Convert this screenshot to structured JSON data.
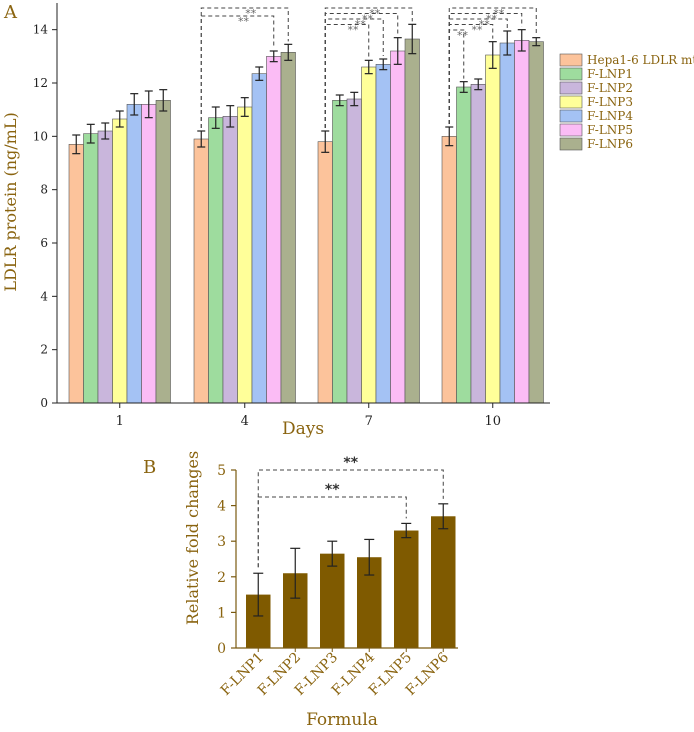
{
  "figure": {
    "colors": {
      "text": "#8a6410",
      "axis": "#222222",
      "bar_b": "#7f5a00",
      "bracket": "#444444"
    }
  },
  "chart_data": [
    {
      "panel_label": "A",
      "type": "bar",
      "title": "",
      "xlabel": "Days",
      "ylabel": "LDLR protein (ng/mL)",
      "categories": [
        "1",
        "4",
        "7",
        "10"
      ],
      "ylim": [
        0,
        15
      ],
      "yticks": [
        "0",
        "2",
        "4",
        "6",
        "8",
        "10",
        "12",
        "14"
      ],
      "legend_position": "right",
      "series": [
        {
          "name": "Hepa1-6 LDLR mt",
          "color": "#fcc39b",
          "values": [
            9.7,
            9.9,
            9.8,
            10.0
          ],
          "errors": [
            0.35,
            0.3,
            0.4,
            0.35
          ]
        },
        {
          "name": "F-LNP1",
          "color": "#9edc9e",
          "values": [
            10.1,
            10.7,
            11.35,
            11.85
          ],
          "errors": [
            0.35,
            0.4,
            0.2,
            0.2
          ]
        },
        {
          "name": "F-LNP2",
          "color": "#c9b6dc",
          "values": [
            10.2,
            10.75,
            11.4,
            11.95
          ],
          "errors": [
            0.3,
            0.4,
            0.25,
            0.2
          ]
        },
        {
          "name": "F-LNP3",
          "color": "#ffff99",
          "values": [
            10.65,
            11.1,
            12.6,
            13.05
          ],
          "errors": [
            0.3,
            0.35,
            0.25,
            0.5
          ]
        },
        {
          "name": "F-LNP4",
          "color": "#a4c2f4",
          "values": [
            11.2,
            12.35,
            12.7,
            13.5
          ],
          "errors": [
            0.4,
            0.25,
            0.2,
            0.45
          ]
        },
        {
          "name": "F-LNP5",
          "color": "#fbbcf5",
          "values": [
            11.2,
            13.0,
            13.2,
            13.6
          ],
          "errors": [
            0.5,
            0.2,
            0.5,
            0.4
          ]
        },
        {
          "name": "F-LNP6",
          "color": "#aab08e",
          "values": [
            11.35,
            13.15,
            13.65,
            13.55
          ],
          "errors": [
            0.4,
            0.3,
            0.55,
            0.15
          ]
        }
      ],
      "significance": [
        {
          "category": "4",
          "from": "Hepa1-6 LDLR mt",
          "to": [
            "F-LNP5",
            "F-LNP6"
          ],
          "label": "**"
        },
        {
          "category": "7",
          "from": "Hepa1-6 LDLR mt",
          "to": [
            "F-LNP3",
            "F-LNP4",
            "F-LNP5",
            "F-LNP6"
          ],
          "label": "**"
        },
        {
          "category": "10",
          "from": "Hepa1-6 LDLR mt",
          "to": [
            "F-LNP1",
            "F-LNP3",
            "F-LNP4",
            "F-LNP5",
            "F-LNP6"
          ],
          "label": "**"
        }
      ]
    },
    {
      "panel_label": "B",
      "type": "bar",
      "title": "",
      "xlabel": "Formula",
      "ylabel": "Relative fold changes",
      "categories": [
        "F-LNP1",
        "F-LNP2",
        "F-LNP3",
        "F-LNP4",
        "F-LNP5",
        "F-LNP6"
      ],
      "values": [
        1.5,
        2.1,
        2.65,
        2.55,
        3.3,
        3.7
      ],
      "errors": [
        0.6,
        0.7,
        0.35,
        0.5,
        0.2,
        0.35
      ],
      "ylim": [
        0,
        5
      ],
      "yticks": [
        "0",
        "1",
        "2",
        "3",
        "4",
        "5"
      ],
      "significance": [
        {
          "from": "F-LNP1",
          "to": "F-LNP5",
          "label": "**"
        },
        {
          "from": "F-LNP1",
          "to": "F-LNP6",
          "label": "**"
        }
      ]
    }
  ]
}
